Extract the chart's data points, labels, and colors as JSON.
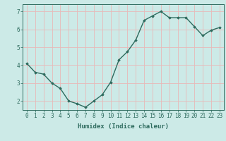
{
  "x": [
    0,
    1,
    2,
    3,
    4,
    5,
    6,
    7,
    8,
    9,
    10,
    11,
    12,
    13,
    14,
    15,
    16,
    17,
    18,
    19,
    20,
    21,
    22,
    23
  ],
  "y": [
    4.1,
    3.6,
    3.5,
    3.0,
    2.7,
    2.0,
    1.85,
    1.65,
    2.0,
    2.35,
    3.05,
    4.3,
    4.75,
    5.4,
    6.5,
    6.75,
    7.0,
    6.65,
    6.65,
    6.65,
    6.15,
    5.65,
    5.95,
    6.1
  ],
  "line_color": "#2e6b5e",
  "marker": "D",
  "marker_size": 1.8,
  "bg_color": "#cceae7",
  "plot_bg_color": "#cceae7",
  "grid_color": "#e8b8b8",
  "bottom_bar_color": "#5a9e96",
  "xlabel": "Humidex (Indice chaleur)",
  "xlabel_fontsize": 6.5,
  "tick_fontsize": 5.5,
  "ylim": [
    1.5,
    7.4
  ],
  "yticks": [
    2,
    3,
    4,
    5,
    6,
    7
  ],
  "xticks": [
    0,
    1,
    2,
    3,
    4,
    5,
    6,
    7,
    8,
    9,
    10,
    11,
    12,
    13,
    14,
    15,
    16,
    17,
    18,
    19,
    20,
    21,
    22,
    23
  ],
  "line_width": 1.0,
  "tick_color": "#2e6b5e",
  "label_color": "#2e6b5e",
  "spine_color": "#2e6b5e"
}
